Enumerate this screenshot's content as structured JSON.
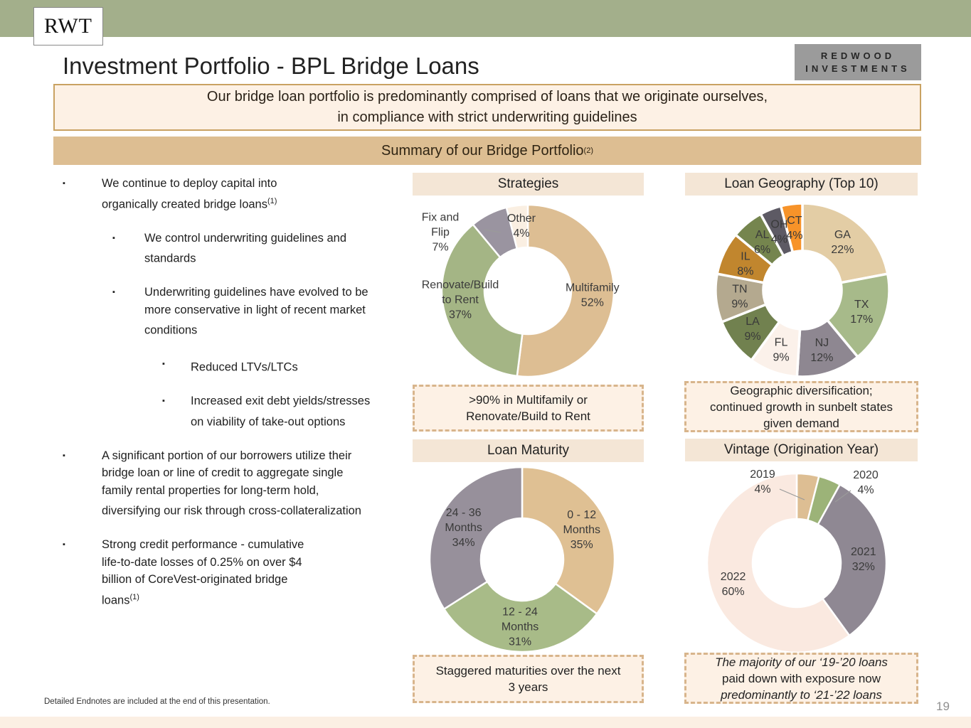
{
  "slide": {
    "logo_short": "RWT",
    "brand_line1": "REDWOOD",
    "brand_line2": "INVESTMENTS",
    "title": "Investment Portfolio - BPL Bridge Loans",
    "banner_line1": "Our bridge loan portfolio is predominantly comprised of loans that we originate ourselves,",
    "banner_line2": "in compliance with strict underwriting guidelines",
    "summary_text": "Summary of our Bridge Portfolio",
    "summary_sup": "(2)",
    "footnote": "Detailed Endnotes are included at the end of this presentation.",
    "page_number": "19"
  },
  "bullets": {
    "items": [
      {
        "text": "We continue to deploy capital into organically created bridge loans",
        "sup": "(1)"
      },
      {
        "text": "We control underwriting guidelines and standards",
        "sup": ""
      },
      {
        "text": "Underwriting guidelines have evolved to be more conservative in light of recent market conditions",
        "sup": ""
      },
      {
        "text": "Reduced LTVs/LTCs",
        "sup": ""
      },
      {
        "text": "Increased exit debt yields/stresses on viability of take-out options",
        "sup": ""
      },
      {
        "text": "A significant portion of our borrowers utilize their bridge loan or line of credit to aggregate single family rental properties for long-term hold, diversifying our risk through cross-collateralization",
        "sup": ""
      },
      {
        "text": "Strong credit performance - cumulative life-to-date losses of 0.25% on over $4 billion of CoreVest-originated bridge loans",
        "sup": "(1)"
      }
    ]
  },
  "chart_data": [
    {
      "type": "pie",
      "key": "strategies",
      "title": "Strategies",
      "legend_position": "inside",
      "segments": [
        {
          "label": "Multifamily",
          "value": 52,
          "color": "#DDBE93"
        },
        {
          "label": "Renovate/Build to Rent",
          "value": 37,
          "color": "#A4B585"
        },
        {
          "label": "Fix and Flip",
          "value": 7,
          "color": "#9A94A0"
        },
        {
          "label": "Other",
          "value": 4,
          "color": "#FAEFE2"
        }
      ],
      "callout": {
        "lines": [
          ">90% in Multifamily or",
          "Renovate/Build to Rent"
        ]
      }
    },
    {
      "type": "pie",
      "key": "geography",
      "title": "Loan Geography (Top 10)",
      "legend_position": "inside",
      "segments": [
        {
          "label": "GA",
          "value": 22,
          "color": "#E3CDA5"
        },
        {
          "label": "TX",
          "value": 17,
          "color": "#A7BA8A"
        },
        {
          "label": "NJ",
          "value": 12,
          "color": "#8E8791"
        },
        {
          "label": "FL",
          "value": 9,
          "color": "#FBF1EA"
        },
        {
          "label": "LA",
          "value": 9,
          "color": "#71814F"
        },
        {
          "label": "TN",
          "value": 9,
          "color": "#B4A98F"
        },
        {
          "label": "IL",
          "value": 8,
          "color": "#C1862E"
        },
        {
          "label": "AL",
          "value": 6,
          "color": "#75854E"
        },
        {
          "label": "OH",
          "value": 4,
          "color": "#5D5A64"
        },
        {
          "label": "CT",
          "value": 4,
          "color": "#F79329"
        }
      ],
      "callout": {
        "lines": [
          "Geographic diversification;",
          "continued growth in sunbelt states",
          "given demand"
        ]
      }
    },
    {
      "type": "pie",
      "key": "maturity",
      "title": "Loan Maturity",
      "legend_position": "inside",
      "segments": [
        {
          "label": "0 - 12 Months",
          "value": 35,
          "color": "#DFC093"
        },
        {
          "label": "12 - 24 Months",
          "value": 31,
          "color": "#A8BB88"
        },
        {
          "label": "24 - 36 Months",
          "value": 34,
          "color": "#97909B"
        }
      ],
      "callout": {
        "lines": [
          "Staggered maturities over the next",
          "3 years"
        ]
      }
    },
    {
      "type": "pie",
      "key": "vintage",
      "title": "Vintage (Origination Year)",
      "legend_position": "inside",
      "segments": [
        {
          "label": "2019",
          "value": 4,
          "color": "#DDBE93"
        },
        {
          "label": "2020",
          "value": 4,
          "color": "#9CB378"
        },
        {
          "label": "2021",
          "value": 32,
          "color": "#8F8893"
        },
        {
          "label": "2022",
          "value": 60,
          "color": "#FAE9E0"
        }
      ],
      "callout": {
        "lines": [
          "The majority of our ‘19-’20 loans",
          "paid down with exposure now",
          "predominantly to ‘21-’22 loans"
        ]
      }
    }
  ]
}
